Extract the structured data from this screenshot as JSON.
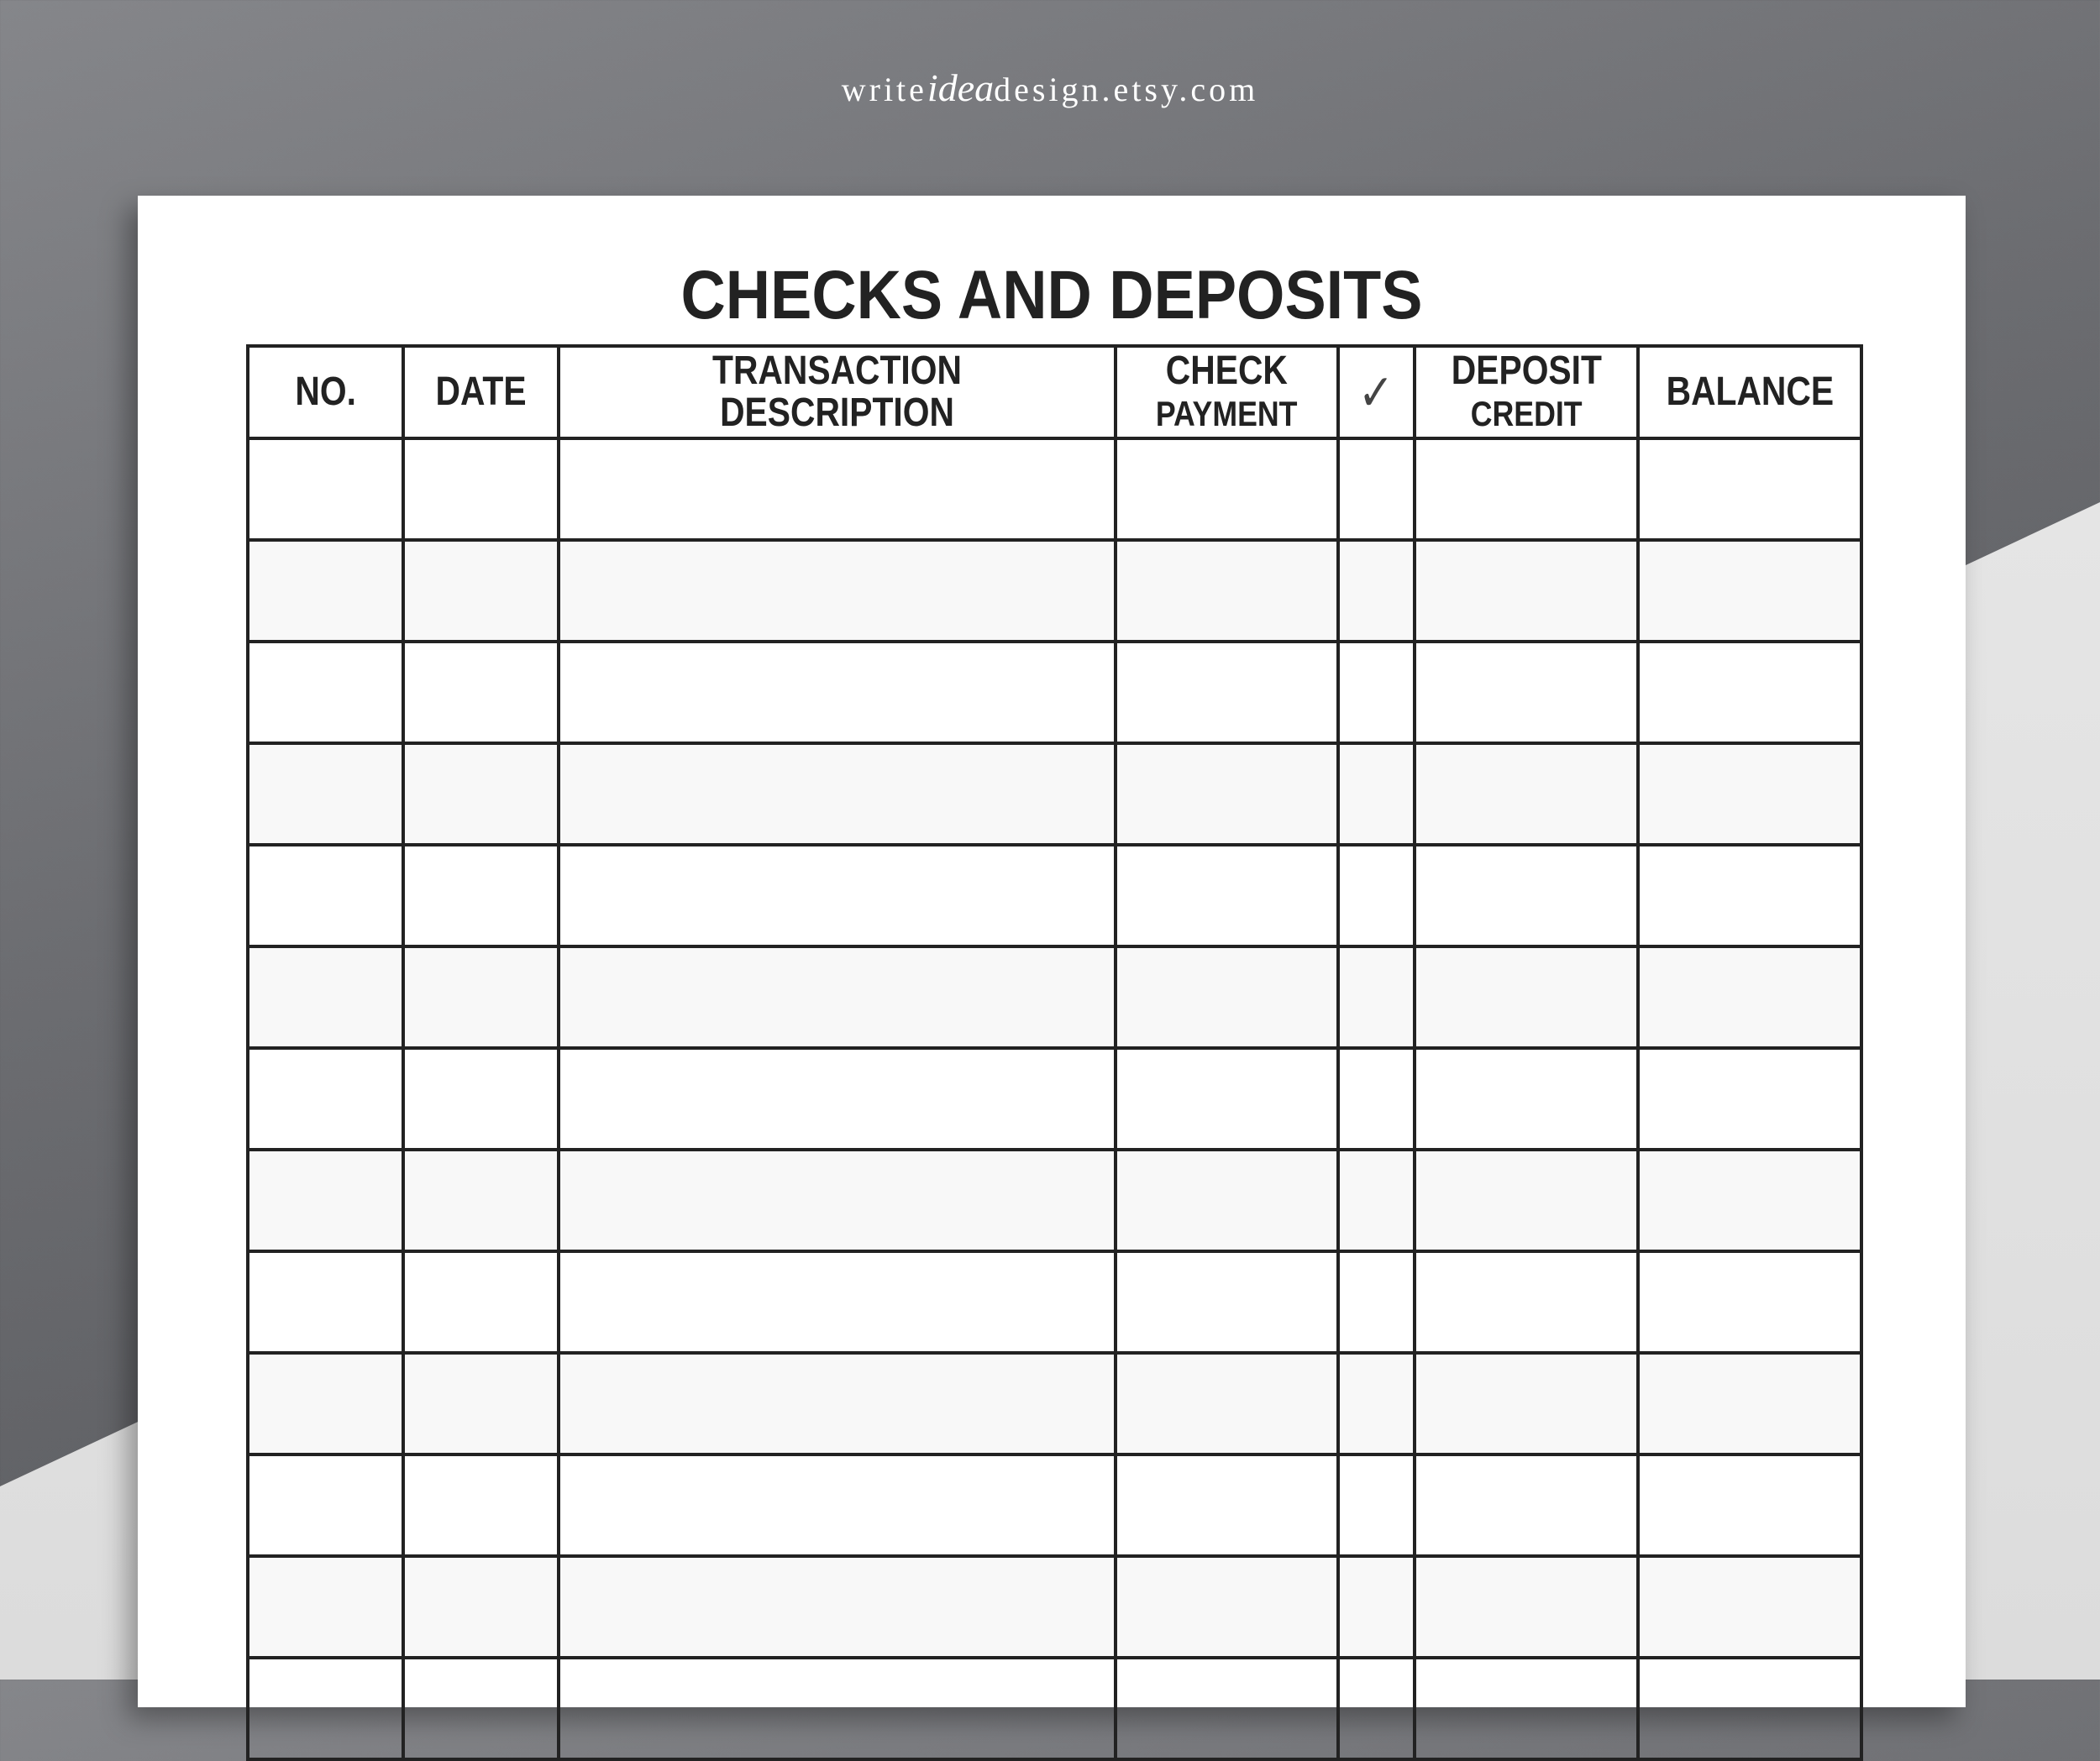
{
  "brand": {
    "pre": "write",
    "mid": "idea",
    "post": "design.etsy.com"
  },
  "title": "CHECKS AND DEPOSITS",
  "columns": [
    {
      "line1": "NO.",
      "line2": ""
    },
    {
      "line1": "DATE",
      "line2": ""
    },
    {
      "line1": "TRANSACTION DESCRIPTION",
      "line2": ""
    },
    {
      "line1": "CHECK",
      "line2": "PAYMENT"
    },
    {
      "line1": "✓",
      "line2": "",
      "icon": "checkmark-icon"
    },
    {
      "line1": "DEPOSIT",
      "line2": "CREDIT"
    },
    {
      "line1": "BALANCE",
      "line2": ""
    }
  ],
  "row_count": 13,
  "colors": {
    "alt_row": "#f8f8f8",
    "line": "#222222"
  }
}
